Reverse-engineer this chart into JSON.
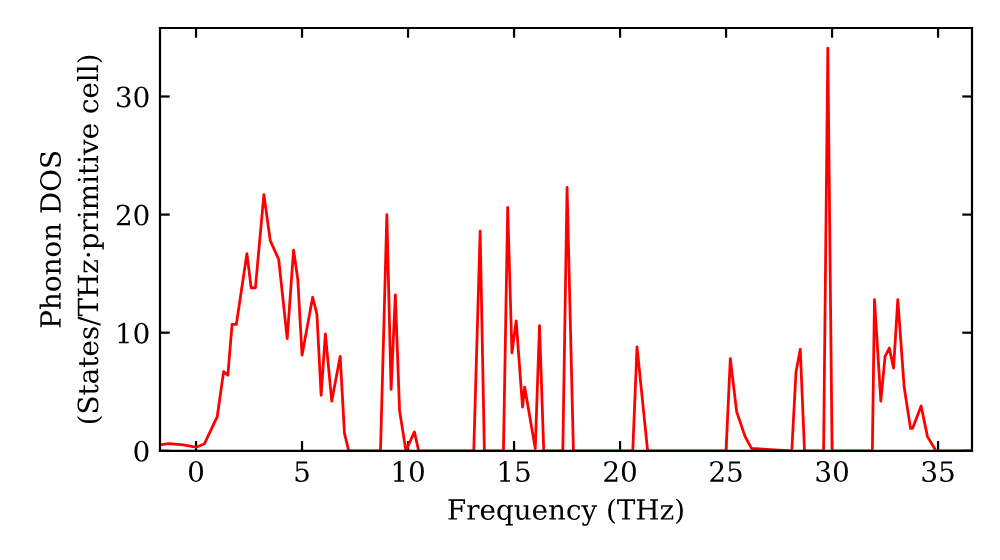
{
  "chart_data": {
    "type": "line",
    "xlabel": "Frequency (THz)",
    "ylabel": "Phonon DOS\n(States/THz·primitive cell)",
    "xlim": [
      -1.7,
      36.6
    ],
    "ylim": [
      0,
      35.8
    ],
    "xticks": [
      0,
      5,
      10,
      15,
      20,
      25,
      30,
      35
    ],
    "yticks": [
      0,
      10,
      20,
      30
    ],
    "grid": false,
    "legend": false,
    "series": [
      {
        "color": "#ff0000",
        "x": [
          -1.7,
          -1.3,
          -0.6,
          0.0,
          0.4,
          1.0,
          1.3,
          1.5,
          1.7,
          1.9,
          2.4,
          2.6,
          2.8,
          3.2,
          3.5,
          3.9,
          4.3,
          4.6,
          4.8,
          5.0,
          5.5,
          5.7,
          5.9,
          6.1,
          6.4,
          6.8,
          7.0,
          7.2,
          8.7,
          9.0,
          9.2,
          9.4,
          9.6,
          9.9,
          10.3,
          10.5,
          13.1,
          13.4,
          13.6,
          14.5,
          14.7,
          14.9,
          15.1,
          15.4,
          15.5,
          16.0,
          16.2,
          16.4,
          17.3,
          17.5,
          17.8,
          20.6,
          20.8,
          21.3,
          25.0,
          25.2,
          25.5,
          25.9,
          26.2,
          28.1,
          28.3,
          28.5,
          28.7,
          29.6,
          29.8,
          30.0,
          31.9,
          32.0,
          32.3,
          32.5,
          32.7,
          32.9,
          33.1,
          33.4,
          33.7,
          33.8,
          34.2,
          34.5,
          34.9,
          36.5
        ],
        "values": [
          0.5,
          0.6,
          0.5,
          0.3,
          0.6,
          2.9,
          6.7,
          6.4,
          10.7,
          10.7,
          16.7,
          13.8,
          13.8,
          21.7,
          17.8,
          16.2,
          9.5,
          17.0,
          14.5,
          8.1,
          13.0,
          11.6,
          4.7,
          9.9,
          4.2,
          8.0,
          1.5,
          0,
          0,
          20.0,
          5.2,
          13.2,
          3.4,
          0,
          1.6,
          0,
          0,
          18.6,
          0,
          0,
          20.6,
          8.3,
          11.0,
          3.7,
          5.4,
          0.2,
          10.6,
          0,
          0,
          22.3,
          0,
          0,
          8.8,
          0,
          0,
          7.8,
          3.3,
          1.2,
          0.2,
          0,
          6.7,
          8.6,
          0,
          0,
          34.1,
          0,
          0,
          12.8,
          4.2,
          8.0,
          8.7,
          7.0,
          12.8,
          5.4,
          1.9,
          1.9,
          3.8,
          1.2,
          0,
          0
        ]
      }
    ]
  }
}
